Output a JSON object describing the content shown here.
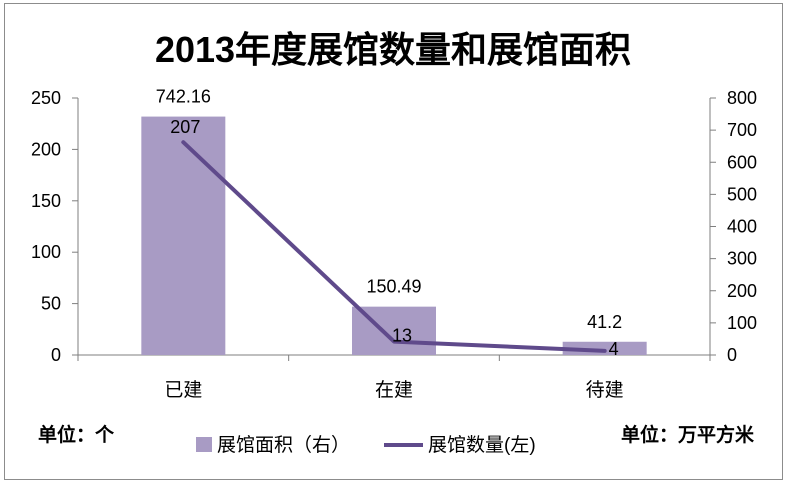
{
  "chart_data": {
    "type": "bar",
    "title": "2013年度展馆数量和展馆面积",
    "categories": [
      "已建",
      "在建",
      "待建"
    ],
    "series": [
      {
        "name": "展馆面积（右）",
        "type": "bar",
        "axis": "right",
        "values": [
          742.16,
          150.49,
          41.2
        ]
      },
      {
        "name": "展馆数量(左)",
        "type": "line",
        "axis": "left",
        "values": [
          207,
          13,
          4
        ]
      }
    ],
    "y_left": {
      "range": [
        0,
        250
      ],
      "ticks": [
        0,
        50,
        100,
        150,
        200,
        250
      ]
    },
    "y_right": {
      "range": [
        0,
        800
      ],
      "ticks": [
        0,
        100,
        200,
        300,
        400,
        500,
        600,
        700,
        800
      ]
    },
    "grid": false,
    "legend": "bottom",
    "data_labels": true,
    "colors": {
      "bar": "#a89bc4",
      "line": "#5f4a8b",
      "frame": "#8c8c8c",
      "axis": "#7f7f7f"
    }
  },
  "units": {
    "left": "单位：个",
    "right": "单位：万平方米"
  }
}
